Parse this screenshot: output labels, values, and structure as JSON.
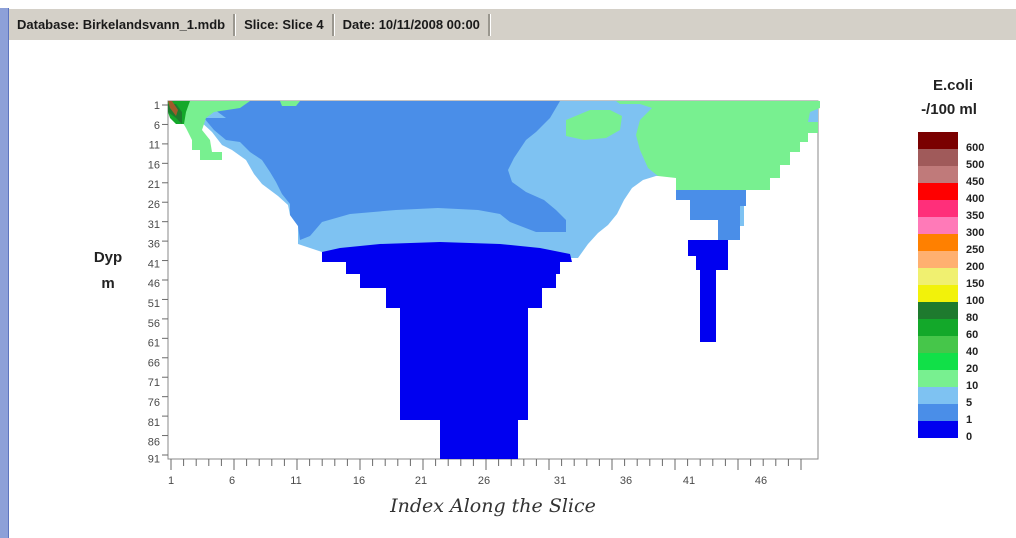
{
  "statusbar": {
    "database": "Database: Birkelandsvann_1.mdb",
    "slice": "Slice: Slice 4",
    "date": "Date: 10/11/2008 00:00"
  },
  "colors": {
    "background": "#ffffff",
    "statusbar": "#d4d0c8",
    "window_edge": "#8da0d8"
  },
  "chart_data": {
    "type": "heatmap",
    "xlabel": "Index Along the Slice",
    "ylabel": [
      "Dyp",
      "m"
    ],
    "x_ticks": [
      "1",
      "6",
      "11",
      "16",
      "21",
      "26",
      "31",
      "36",
      "41",
      "46"
    ],
    "y_ticks": [
      "1",
      "6",
      "11",
      "16",
      "21",
      "26",
      "31",
      "36",
      "41",
      "46",
      "51",
      "56",
      "61",
      "66",
      "71",
      "76",
      "81",
      "86",
      "91"
    ],
    "legend": {
      "title_line1": "E.coli",
      "title_line2": "-/100 ml",
      "levels": [
        {
          "label": "600",
          "color": "#7a0000"
        },
        {
          "label": "500",
          "color": "#a05a5a"
        },
        {
          "label": "450",
          "color": "#c07a7a"
        },
        {
          "label": "400",
          "color": "#ff0000"
        },
        {
          "label": "350",
          "color": "#ff2f7a"
        },
        {
          "label": "300",
          "color": "#ff7ab8"
        },
        {
          "label": "250",
          "color": "#ff8000"
        },
        {
          "label": "200",
          "color": "#ffb070"
        },
        {
          "label": "150",
          "color": "#f0f070"
        },
        {
          "label": "100",
          "color": "#f2f20a"
        },
        {
          "label": "80",
          "color": "#1e7a2e"
        },
        {
          "label": "60",
          "color": "#13a82a"
        },
        {
          "label": "40",
          "color": "#46c64a"
        },
        {
          "label": "20",
          "color": "#11e048"
        },
        {
          "label": "10",
          "color": "#78f090"
        },
        {
          "label": "5",
          "color": "#7ec2f2"
        },
        {
          "label": "1",
          "color": "#4a8ee8"
        },
        {
          "label": "0",
          "color": "#0000f0"
        }
      ]
    }
  }
}
